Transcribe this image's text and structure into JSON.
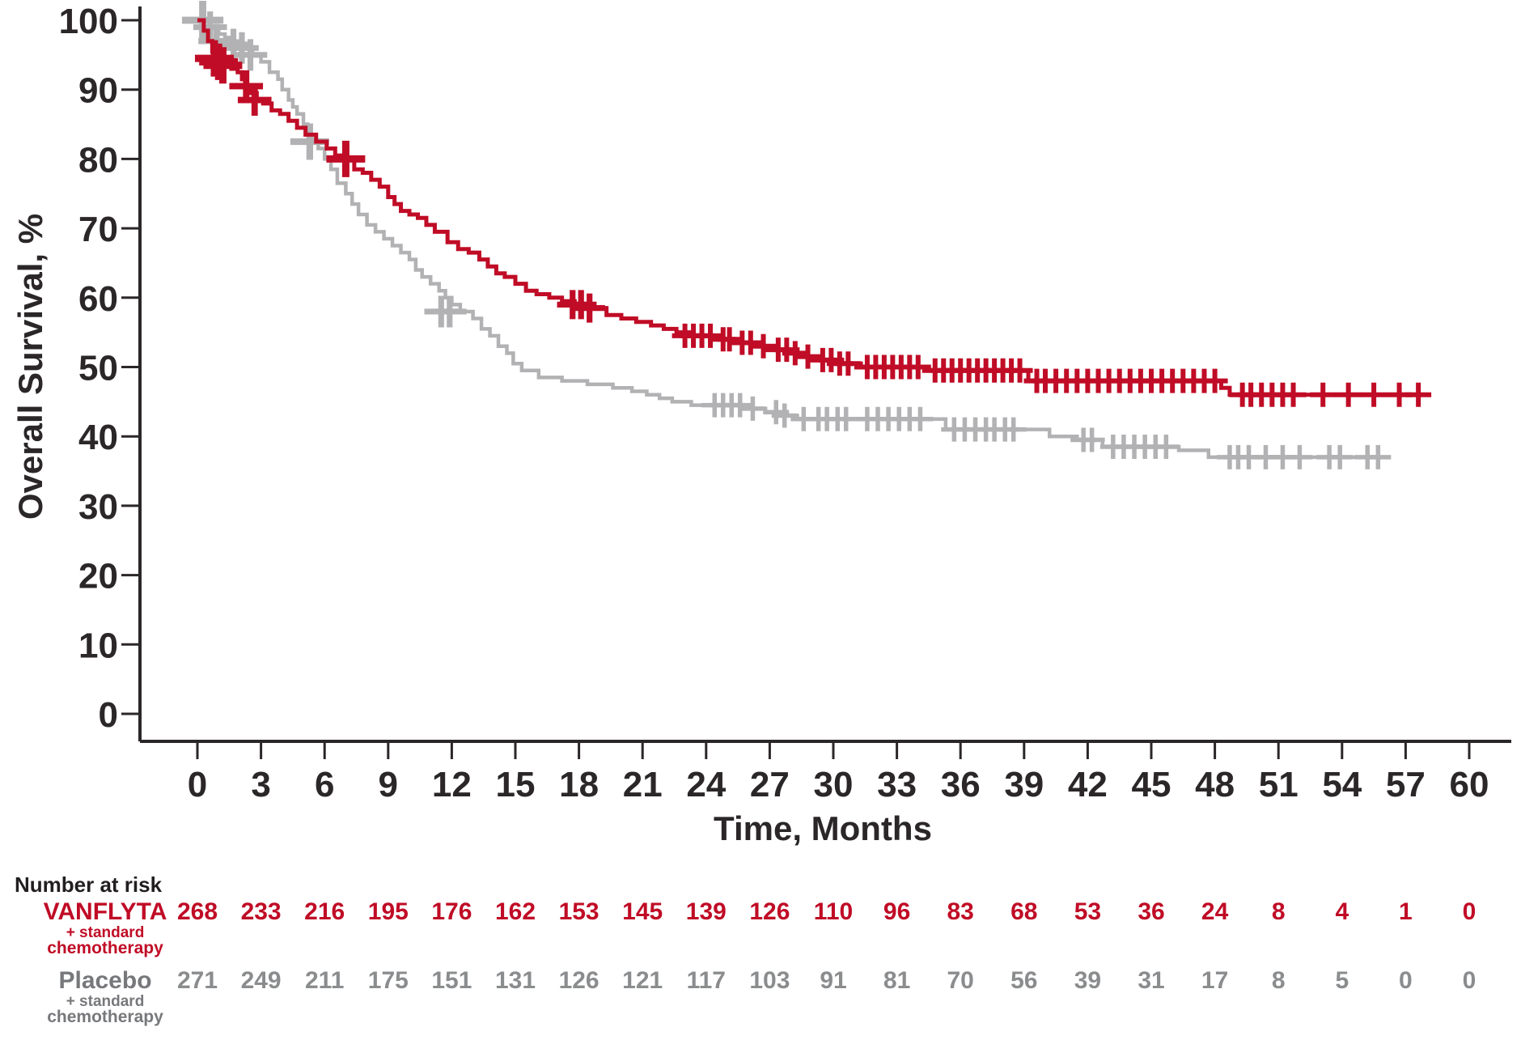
{
  "chart_data": {
    "type": "line",
    "subtype": "kaplan-meier-step",
    "title": "",
    "xlabel": "Time, Months",
    "ylabel": "Overall Survival, %",
    "xlim": [
      0,
      60
    ],
    "ylim": [
      0,
      100
    ],
    "xticks": [
      0,
      3,
      6,
      9,
      12,
      15,
      18,
      21,
      24,
      27,
      30,
      33,
      36,
      39,
      42,
      45,
      48,
      51,
      54,
      57,
      60
    ],
    "yticks": [
      0,
      10,
      20,
      30,
      40,
      50,
      60,
      70,
      80,
      90,
      100
    ],
    "grid": false,
    "legend_position": "none",
    "axis_color": "#2b2728",
    "series": [
      {
        "name": "VANFLYTA + standard chemotherapy",
        "color": "#c00c26",
        "line_width": 5,
        "steps": [
          [
            0,
            100
          ],
          [
            0.3,
            98.5
          ],
          [
            0.5,
            97
          ],
          [
            0.7,
            95.5
          ],
          [
            0.9,
            94.5
          ],
          [
            1.1,
            93.5
          ],
          [
            1.6,
            93
          ],
          [
            1.9,
            92.5
          ],
          [
            2.1,
            91.5
          ],
          [
            2.3,
            90.5
          ],
          [
            2.5,
            89.5
          ],
          [
            2.8,
            88.5
          ],
          [
            3.1,
            88
          ],
          [
            3.5,
            87
          ],
          [
            3.9,
            86.5
          ],
          [
            4.3,
            85.5
          ],
          [
            4.7,
            84.5
          ],
          [
            5.1,
            83.5
          ],
          [
            5.6,
            82.5
          ],
          [
            6.1,
            81.5
          ],
          [
            6.5,
            80.5
          ],
          [
            7,
            80
          ],
          [
            7.4,
            78.5
          ],
          [
            7.8,
            78
          ],
          [
            8.2,
            77
          ],
          [
            8.6,
            76
          ],
          [
            9,
            74.5
          ],
          [
            9.3,
            73.5
          ],
          [
            9.6,
            72.5
          ],
          [
            10,
            72
          ],
          [
            10.4,
            71.5
          ],
          [
            10.8,
            70.5
          ],
          [
            11.2,
            69.5
          ],
          [
            11.8,
            68
          ],
          [
            12.3,
            67
          ],
          [
            12.8,
            66.5
          ],
          [
            13.3,
            65.5
          ],
          [
            13.7,
            64.5
          ],
          [
            14.1,
            63.5
          ],
          [
            14.5,
            63
          ],
          [
            15,
            62
          ],
          [
            15.5,
            61
          ],
          [
            16,
            60.5
          ],
          [
            16.6,
            60
          ],
          [
            17.2,
            59.5
          ],
          [
            17.8,
            59
          ],
          [
            18.6,
            58.5
          ],
          [
            19.3,
            57.5
          ],
          [
            20,
            57
          ],
          [
            20.7,
            56.5
          ],
          [
            21.4,
            56
          ],
          [
            22,
            55.5
          ],
          [
            22.6,
            55
          ],
          [
            23.4,
            54.5
          ],
          [
            24.6,
            54
          ],
          [
            25.4,
            53.5
          ],
          [
            26.5,
            53
          ],
          [
            27.2,
            52.5
          ],
          [
            28,
            52
          ],
          [
            28.6,
            51.5
          ],
          [
            29.3,
            51
          ],
          [
            30.1,
            50.5
          ],
          [
            31.3,
            50
          ],
          [
            34.5,
            49.5
          ],
          [
            39.2,
            48
          ],
          [
            48.3,
            47
          ],
          [
            48.7,
            46
          ],
          [
            58.2,
            46
          ]
        ],
        "censors": [
          [
            0.8,
            94.5,
            1.5
          ],
          [
            1,
            94,
            1.5
          ],
          [
            1.2,
            93.5,
            1.5
          ],
          [
            2.3,
            90.5,
            1.3
          ],
          [
            2.7,
            88.5,
            1.3
          ],
          [
            7,
            80,
            1.5
          ],
          [
            17.7,
            59,
            1.2
          ],
          [
            18.1,
            59,
            1.2
          ],
          [
            18.5,
            58.5,
            1.2
          ],
          [
            23,
            54.5
          ],
          [
            23.4,
            54.5
          ],
          [
            23.8,
            54.5
          ],
          [
            24.2,
            54.5
          ],
          [
            24.8,
            54
          ],
          [
            25.1,
            54
          ],
          [
            25.7,
            53.5
          ],
          [
            26.1,
            53.5
          ],
          [
            26.7,
            53
          ],
          [
            27.4,
            52.5
          ],
          [
            27.8,
            52.5
          ],
          [
            28.2,
            52
          ],
          [
            28.8,
            51.5
          ],
          [
            29.5,
            51
          ],
          [
            29.9,
            51
          ],
          [
            30.3,
            50.5
          ],
          [
            30.7,
            50.5
          ],
          [
            31.6,
            50
          ],
          [
            32,
            50
          ],
          [
            32.4,
            50
          ],
          [
            32.8,
            50
          ],
          [
            33.2,
            50
          ],
          [
            33.6,
            50
          ],
          [
            34,
            50
          ],
          [
            34.8,
            49.5
          ],
          [
            35.2,
            49.5
          ],
          [
            35.6,
            49.5
          ],
          [
            36,
            49.5
          ],
          [
            36.4,
            49.5
          ],
          [
            36.8,
            49.5
          ],
          [
            37.2,
            49.5
          ],
          [
            37.6,
            49.5
          ],
          [
            38,
            49.5
          ],
          [
            38.4,
            49.5
          ],
          [
            38.8,
            49.5
          ],
          [
            39.6,
            48
          ],
          [
            40,
            48
          ],
          [
            40.5,
            48
          ],
          [
            41,
            48
          ],
          [
            41.5,
            48
          ],
          [
            42,
            48
          ],
          [
            42.5,
            48
          ],
          [
            43,
            48
          ],
          [
            43.5,
            48
          ],
          [
            44,
            48
          ],
          [
            44.5,
            48
          ],
          [
            45,
            48
          ],
          [
            45.5,
            48
          ],
          [
            46,
            48
          ],
          [
            46.5,
            48
          ],
          [
            47,
            48
          ],
          [
            47.5,
            48
          ],
          [
            48,
            48
          ],
          [
            49.3,
            46
          ],
          [
            49.7,
            46
          ],
          [
            50.2,
            46
          ],
          [
            50.7,
            46
          ],
          [
            51.2,
            46
          ],
          [
            51.7,
            46
          ],
          [
            53.1,
            46
          ],
          [
            54.3,
            46
          ],
          [
            55.5,
            46
          ],
          [
            56.7,
            46
          ],
          [
            57.6,
            46
          ]
        ]
      },
      {
        "name": "Placebo + standard chemotherapy",
        "color": "#b2b2b4",
        "line_width": 4.5,
        "steps": [
          [
            0,
            100
          ],
          [
            0.6,
            99
          ],
          [
            1,
            98
          ],
          [
            1.3,
            97.5
          ],
          [
            1.6,
            97
          ],
          [
            2,
            96.5
          ],
          [
            2.3,
            96
          ],
          [
            2.6,
            95
          ],
          [
            3,
            94
          ],
          [
            3.4,
            92.5
          ],
          [
            3.8,
            91.5
          ],
          [
            4,
            90
          ],
          [
            4.3,
            88.5
          ],
          [
            4.5,
            87.5
          ],
          [
            4.7,
            86.5
          ],
          [
            5,
            85
          ],
          [
            5.2,
            83.5
          ],
          [
            5.4,
            82.5
          ],
          [
            5.7,
            81.5
          ],
          [
            6,
            80
          ],
          [
            6.3,
            78.5
          ],
          [
            6.6,
            76.5
          ],
          [
            7,
            75
          ],
          [
            7.3,
            73.5
          ],
          [
            7.6,
            72
          ],
          [
            8,
            70.5
          ],
          [
            8.4,
            69.5
          ],
          [
            8.8,
            68.5
          ],
          [
            9.2,
            67.5
          ],
          [
            9.6,
            66.5
          ],
          [
            10,
            65.5
          ],
          [
            10.3,
            64
          ],
          [
            10.6,
            63
          ],
          [
            11,
            62
          ],
          [
            11.4,
            61
          ],
          [
            11.7,
            60
          ],
          [
            12,
            59
          ],
          [
            12.4,
            58
          ],
          [
            13,
            57
          ],
          [
            13.4,
            55.5
          ],
          [
            13.8,
            54.5
          ],
          [
            14.2,
            53
          ],
          [
            14.6,
            52
          ],
          [
            14.9,
            50.5
          ],
          [
            15.3,
            49.5
          ],
          [
            16.1,
            48.5
          ],
          [
            17.2,
            48
          ],
          [
            18.4,
            47.5
          ],
          [
            19.6,
            47
          ],
          [
            20.5,
            46.5
          ],
          [
            21.2,
            46
          ],
          [
            21.8,
            45.5
          ],
          [
            22.4,
            45
          ],
          [
            23.3,
            44.5
          ],
          [
            25.9,
            44
          ],
          [
            26.8,
            43.5
          ],
          [
            27.6,
            43
          ],
          [
            28.3,
            42.5
          ],
          [
            35.3,
            41
          ],
          [
            40.2,
            40
          ],
          [
            41.5,
            39.5
          ],
          [
            42.7,
            38.5
          ],
          [
            46.3,
            38
          ],
          [
            47.7,
            37
          ],
          [
            56.2,
            37
          ]
        ],
        "censors": [
          [
            0.25,
            100,
            1.6
          ],
          [
            0.6,
            99,
            1.3
          ],
          [
            0.9,
            97,
            1.4
          ],
          [
            1.7,
            96.5,
            1.3
          ],
          [
            2.1,
            96,
            1.3
          ],
          [
            2.5,
            95,
            1.3
          ],
          [
            5.3,
            82.5,
            1.5
          ],
          [
            11.5,
            58,
            1.3
          ],
          [
            11.9,
            58,
            1.3
          ],
          [
            24.4,
            44.5
          ],
          [
            24.8,
            44.5
          ],
          [
            25.2,
            44.5
          ],
          [
            25.6,
            44.5
          ],
          [
            26.2,
            44
          ],
          [
            27.3,
            43.5
          ],
          [
            27.7,
            43
          ],
          [
            28.6,
            42.5
          ],
          [
            29.3,
            42.5
          ],
          [
            29.7,
            42.5
          ],
          [
            30.2,
            42.5
          ],
          [
            30.6,
            42.5
          ],
          [
            31.6,
            42.5
          ],
          [
            32.1,
            42.5
          ],
          [
            32.6,
            42.5
          ],
          [
            33.1,
            42.5
          ],
          [
            33.6,
            42.5
          ],
          [
            34.1,
            42.5
          ],
          [
            35.7,
            41
          ],
          [
            36.2,
            41
          ],
          [
            36.7,
            41
          ],
          [
            37.2,
            41
          ],
          [
            37.6,
            41
          ],
          [
            38.1,
            41
          ],
          [
            38.5,
            41
          ],
          [
            41.8,
            39.5
          ],
          [
            42.2,
            39.5
          ],
          [
            43.2,
            38.5
          ],
          [
            43.7,
            38.5
          ],
          [
            44.2,
            38.5
          ],
          [
            44.7,
            38.5
          ],
          [
            45.2,
            38.5
          ],
          [
            45.7,
            38.5
          ],
          [
            48.7,
            37
          ],
          [
            49.1,
            37
          ],
          [
            49.6,
            37
          ],
          [
            50.4,
            37
          ],
          [
            51.2,
            37
          ],
          [
            52,
            37
          ],
          [
            53.4,
            37
          ],
          [
            53.9,
            37
          ],
          [
            55.2,
            37
          ],
          [
            55.7,
            37
          ]
        ]
      }
    ],
    "risk_table": {
      "heading": "Number at risk",
      "times": [
        0,
        3,
        6,
        9,
        12,
        15,
        18,
        21,
        24,
        27,
        30,
        33,
        36,
        39,
        42,
        45,
        48,
        51,
        54,
        57,
        60
      ],
      "rows": [
        {
          "label": "VANFLYTA",
          "sublabel1": "+ standard",
          "sublabel2": "chemotherapy",
          "label_color": "#c00c26",
          "value_color": "#c00c26",
          "values": [
            "268",
            "233",
            "216",
            "195",
            "176",
            "162",
            "153",
            "145",
            "139",
            "126",
            "110",
            "96",
            "83",
            "68",
            "53",
            "36",
            "24",
            "8",
            "4",
            "1",
            "0"
          ]
        },
        {
          "label": "Placebo",
          "sublabel1": "+ standard",
          "sublabel2": "chemotherapy",
          "label_color": "#77787b",
          "value_color": "#8a8c8e",
          "values": [
            "271",
            "249",
            "211",
            "175",
            "151",
            "131",
            "126",
            "121",
            "117",
            "103",
            "91",
            "81",
            "70",
            "56",
            "39",
            "31",
            "17",
            "8",
            "5",
            "0",
            "0"
          ]
        }
      ]
    }
  }
}
